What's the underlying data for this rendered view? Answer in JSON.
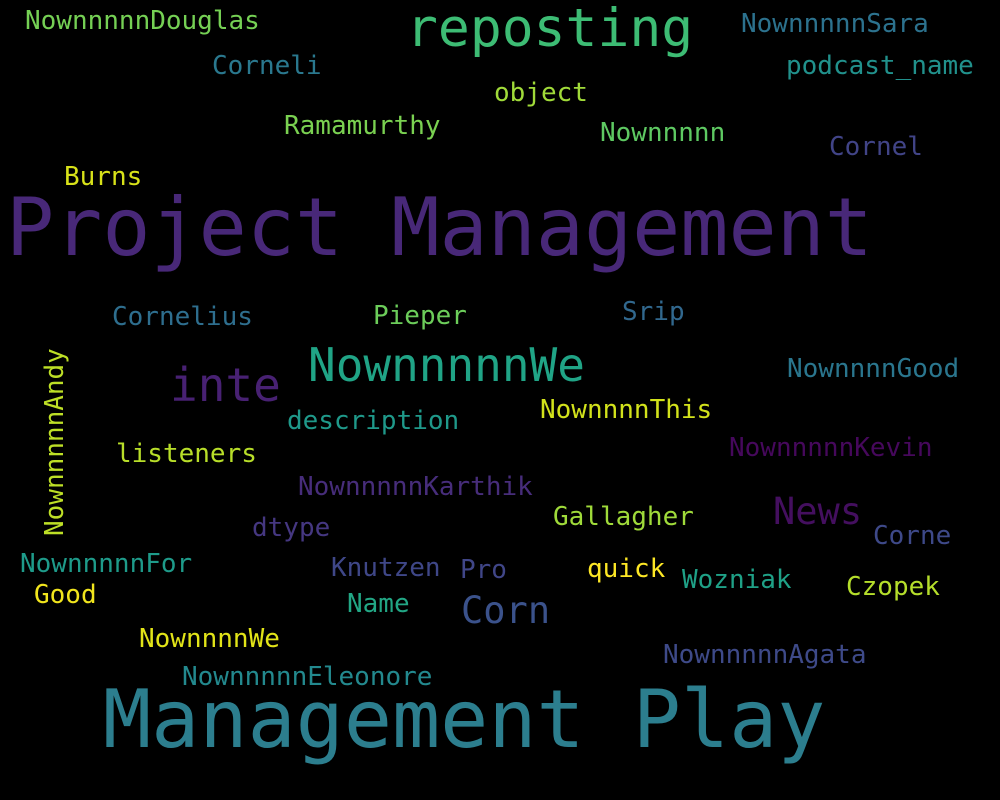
{
  "words": [
    {
      "text": "Project Management",
      "color": "#482878"
    },
    {
      "text": "Management Play",
      "color": "#2c7e8e"
    },
    {
      "text": "reposting",
      "color": "#3dbc74"
    },
    {
      "text": "NownnnnnWe",
      "color": "#20a486"
    },
    {
      "text": "inte",
      "color": "#482173"
    },
    {
      "text": "News",
      "color": "#440f5f"
    },
    {
      "text": "Corn",
      "color": "#3b528b"
    },
    {
      "text": "NownnnnnDouglas",
      "color": "#75d054"
    },
    {
      "text": "NownnnnnSara",
      "color": "#2c728e"
    },
    {
      "text": "Corneli",
      "color": "#2a788e"
    },
    {
      "text": "podcast_name",
      "color": "#21918c"
    },
    {
      "text": "object",
      "color": "#a0da39"
    },
    {
      "text": "Ramamurthy",
      "color": "#7ad151"
    },
    {
      "text": "Nownnnnn",
      "color": "#5ec962"
    },
    {
      "text": "Cornel",
      "color": "#414487"
    },
    {
      "text": "Burns",
      "color": "#d8e219"
    },
    {
      "text": "Cornelius",
      "color": "#2e6e8e"
    },
    {
      "text": "Pieper",
      "color": "#6ccd5a"
    },
    {
      "text": "Srip",
      "color": "#31688e"
    },
    {
      "text": "NownnnnnAndy",
      "color": "#bddf26"
    },
    {
      "text": "NownnnnGood",
      "color": "#2a768e"
    },
    {
      "text": "description",
      "color": "#1f998a"
    },
    {
      "text": "NownnnnThis",
      "color": "#d2e21b"
    },
    {
      "text": "listeners",
      "color": "#b8de29"
    },
    {
      "text": "NownnnnnKevin",
      "color": "#46085c"
    },
    {
      "text": "NownnnnnKarthik",
      "color": "#472d7b"
    },
    {
      "text": "Gallagher",
      "color": "#9fda3a"
    },
    {
      "text": "dtype",
      "color": "#453781"
    },
    {
      "text": "Corne",
      "color": "#3e4989"
    },
    {
      "text": "NownnnnnFor",
      "color": "#1e9b8a"
    },
    {
      "text": "Good",
      "color": "#f1e51d"
    },
    {
      "text": "Knutzen",
      "color": "#3f4788"
    },
    {
      "text": "Pro",
      "color": "#404688"
    },
    {
      "text": "quick",
      "color": "#fde725"
    },
    {
      "text": "Wozniak",
      "color": "#1fa187"
    },
    {
      "text": "Czopek",
      "color": "#b5de2b"
    },
    {
      "text": "Name",
      "color": "#22a785"
    },
    {
      "text": "NownnnnWe",
      "color": "#e2e418"
    },
    {
      "text": "NownnnnnAgata",
      "color": "#3e4a89"
    },
    {
      "text": "NownnnnnEleonore",
      "color": "#23898e"
    }
  ]
}
